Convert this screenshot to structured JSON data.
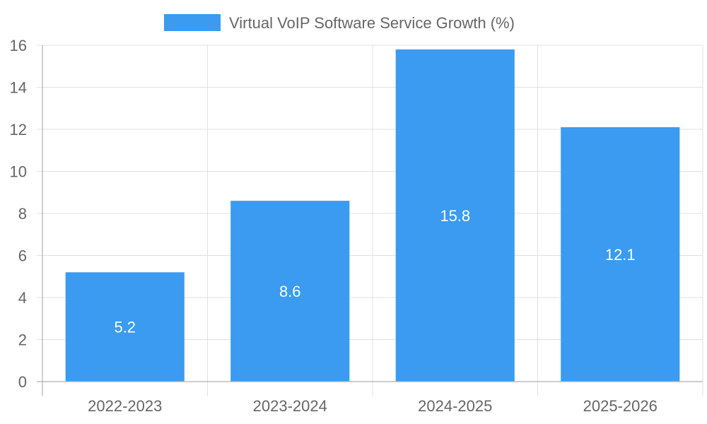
{
  "chart_data": {
    "type": "bar",
    "title": "",
    "xlabel": "",
    "ylabel": "",
    "categories": [
      "2022-2023",
      "2023-2024",
      "2024-2025",
      "2025-2026"
    ],
    "series": [
      {
        "name": "Virtual VoIP Software Service Growth (%)",
        "values": [
          5.2,
          8.6,
          15.8,
          12.1
        ],
        "value_labels": [
          "5.2",
          "8.6",
          "15.8",
          "12.1"
        ],
        "color": "#3a9bf0"
      }
    ],
    "ylim": [
      0,
      16
    ],
    "y_ticks": [
      "0",
      "2",
      "4",
      "6",
      "8",
      "10",
      "12",
      "14",
      "16"
    ],
    "legend_position": "top-center",
    "grid": true
  }
}
